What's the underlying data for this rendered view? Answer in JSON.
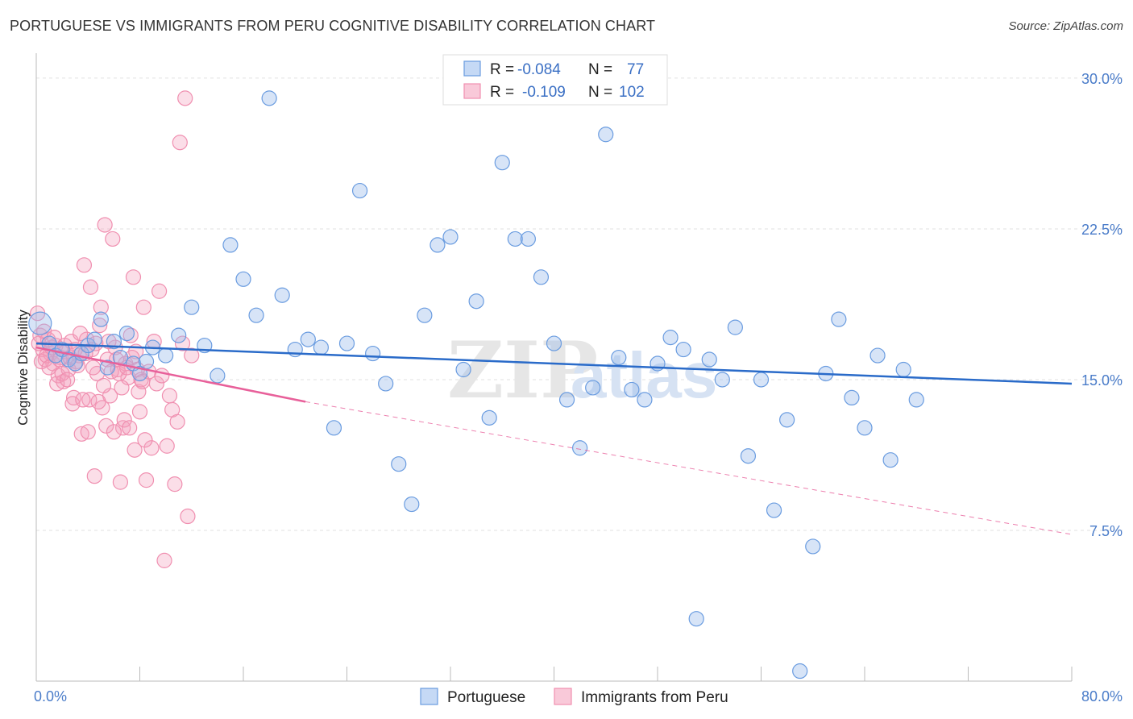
{
  "header": {
    "title": "PORTUGUESE VS IMMIGRANTS FROM PERU COGNITIVE DISABILITY CORRELATION CHART",
    "source": "Source: ZipAtlas.com"
  },
  "legend": {
    "rows": [
      {
        "r_label": "R =",
        "r_value": "-0.084",
        "n_label": "N =",
        "n_value": "77"
      },
      {
        "r_label": "R =",
        "r_value": "-0.109",
        "n_label": "N =",
        "n_value": "102"
      }
    ]
  },
  "bottom_legend": [
    "Portuguese",
    "Immigrants from Peru"
  ],
  "watermark": {
    "zip": "ZIP",
    "atlas": "atlas"
  },
  "chart_data": {
    "type": "scatter",
    "title": "PORTUGUESE VS IMMIGRANTS FROM PERU COGNITIVE DISABILITY CORRELATION CHART",
    "ylabel": "Cognitive Disability",
    "xlabel": "",
    "xlim": [
      0,
      80
    ],
    "ylim": [
      0,
      31
    ],
    "x_tick_labels": [
      "0.0%",
      "80.0%"
    ],
    "y_ticks": [
      7.5,
      15.0,
      22.5,
      30.0
    ],
    "y_tick_labels": [
      "7.5%",
      "15.0%",
      "22.5%",
      "30.0%"
    ],
    "grid": true,
    "legend_placement": "top-center",
    "colors": {
      "portuguese": "#6a9ce0",
      "peru": "#f08fb0",
      "portuguese_line": "#2a6bc9",
      "peru_line": "#e8609a"
    },
    "series": [
      {
        "name": "Portuguese",
        "R": -0.084,
        "N": 77,
        "trend": {
          "x0": 0,
          "y0": 16.8,
          "x1": 80,
          "y1": 14.8
        },
        "points": [
          [
            0.3,
            17.8
          ],
          [
            1,
            16.8
          ],
          [
            1.5,
            16.2
          ],
          [
            2,
            16.5
          ],
          [
            2.5,
            16.0
          ],
          [
            3,
            15.8
          ],
          [
            3.5,
            16.3
          ],
          [
            4,
            16.7
          ],
          [
            4.5,
            17.0
          ],
          [
            5,
            18.0
          ],
          [
            5.5,
            15.6
          ],
          [
            6,
            16.9
          ],
          [
            6.5,
            16.1
          ],
          [
            7,
            17.3
          ],
          [
            7.5,
            15.8
          ],
          [
            8,
            15.3
          ],
          [
            8.5,
            15.9
          ],
          [
            9,
            16.6
          ],
          [
            10,
            16.2
          ],
          [
            11,
            17.2
          ],
          [
            12,
            18.6
          ],
          [
            13,
            16.7
          ],
          [
            14,
            15.2
          ],
          [
            15,
            21.7
          ],
          [
            16,
            20.0
          ],
          [
            17,
            18.2
          ],
          [
            18,
            29.0
          ],
          [
            19,
            19.2
          ],
          [
            20,
            16.5
          ],
          [
            21,
            17.0
          ],
          [
            22,
            16.6
          ],
          [
            23,
            12.6
          ],
          [
            24,
            16.8
          ],
          [
            25,
            24.4
          ],
          [
            26,
            16.3
          ],
          [
            27,
            14.8
          ],
          [
            28,
            10.8
          ],
          [
            29,
            8.8
          ],
          [
            30,
            18.2
          ],
          [
            31,
            21.7
          ],
          [
            32,
            22.1
          ],
          [
            33,
            15.5
          ],
          [
            34,
            18.9
          ],
          [
            35,
            13.1
          ],
          [
            36,
            25.8
          ],
          [
            37,
            22.0
          ],
          [
            38,
            22.0
          ],
          [
            39,
            20.1
          ],
          [
            40,
            16.8
          ],
          [
            41,
            14.0
          ],
          [
            42,
            11.6
          ],
          [
            43,
            14.6
          ],
          [
            44,
            27.2
          ],
          [
            45,
            16.1
          ],
          [
            46,
            14.5
          ],
          [
            47,
            14.0
          ],
          [
            48,
            15.8
          ],
          [
            49,
            17.1
          ],
          [
            50,
            16.5
          ],
          [
            51,
            3.1
          ],
          [
            52,
            16.0
          ],
          [
            53,
            15.0
          ],
          [
            54,
            17.6
          ],
          [
            55,
            11.2
          ],
          [
            56,
            15.0
          ],
          [
            57,
            8.5
          ],
          [
            58,
            13.0
          ],
          [
            59,
            0.5
          ],
          [
            60,
            6.7
          ],
          [
            61,
            15.3
          ],
          [
            62,
            18.0
          ],
          [
            63,
            14.1
          ],
          [
            64,
            12.6
          ],
          [
            65,
            16.2
          ],
          [
            66,
            11.0
          ],
          [
            67,
            15.5
          ],
          [
            68,
            14.0
          ]
        ]
      },
      {
        "name": "Immigrants from Peru",
        "R": -0.109,
        "N": 102,
        "trend": {
          "x0": 0,
          "y0": 16.6,
          "x1": 20.8,
          "y1": 13.9,
          "dash_x1": 80,
          "dash_y1": 7.3
        },
        "points": [
          [
            0.1,
            18.3
          ],
          [
            0.3,
            17.2
          ],
          [
            0.5,
            16.5
          ],
          [
            0.7,
            16.0
          ],
          [
            0.9,
            17.0
          ],
          [
            1.1,
            16.3
          ],
          [
            1.3,
            15.8
          ],
          [
            1.5,
            16.7
          ],
          [
            1.7,
            15.2
          ],
          [
            1.9,
            16.1
          ],
          [
            2.1,
            14.9
          ],
          [
            2.3,
            16.4
          ],
          [
            2.5,
            15.5
          ],
          [
            2.7,
            16.9
          ],
          [
            2.9,
            14.1
          ],
          [
            3.1,
            15.9
          ],
          [
            3.3,
            16.2
          ],
          [
            3.5,
            12.3
          ],
          [
            3.7,
            20.7
          ],
          [
            3.9,
            17.0
          ],
          [
            4.1,
            14.0
          ],
          [
            4.3,
            16.5
          ],
          [
            4.5,
            10.2
          ],
          [
            4.7,
            15.3
          ],
          [
            4.9,
            17.7
          ],
          [
            5.1,
            13.6
          ],
          [
            5.3,
            22.7
          ],
          [
            5.5,
            16.0
          ],
          [
            5.7,
            14.2
          ],
          [
            5.9,
            22.0
          ],
          [
            6.1,
            16.6
          ],
          [
            6.3,
            15.5
          ],
          [
            6.5,
            9.9
          ],
          [
            6.7,
            12.6
          ],
          [
            6.9,
            15.8
          ],
          [
            7.1,
            15.1
          ],
          [
            7.3,
            17.2
          ],
          [
            7.5,
            20.1
          ],
          [
            7.7,
            16.4
          ],
          [
            7.9,
            14.4
          ],
          [
            8.1,
            15.0
          ],
          [
            8.3,
            18.6
          ],
          [
            8.5,
            10.0
          ],
          [
            8.7,
            15.4
          ],
          [
            8.9,
            11.6
          ],
          [
            9.1,
            16.9
          ],
          [
            9.3,
            14.8
          ],
          [
            9.5,
            19.4
          ],
          [
            9.7,
            15.2
          ],
          [
            9.9,
            6.0
          ],
          [
            10.1,
            11.7
          ],
          [
            10.3,
            14.2
          ],
          [
            10.5,
            13.5
          ],
          [
            10.7,
            9.8
          ],
          [
            10.9,
            12.9
          ],
          [
            11.1,
            26.8
          ],
          [
            11.3,
            16.8
          ],
          [
            11.5,
            29.0
          ],
          [
            11.7,
            8.2
          ],
          [
            12.0,
            16.2
          ],
          [
            0.2,
            16.8
          ],
          [
            0.4,
            15.9
          ],
          [
            0.6,
            17.4
          ],
          [
            0.8,
            16.2
          ],
          [
            1.0,
            15.6
          ],
          [
            1.2,
            16.6
          ],
          [
            1.4,
            17.1
          ],
          [
            1.6,
            14.8
          ],
          [
            1.8,
            16.0
          ],
          [
            2.0,
            15.3
          ],
          [
            2.2,
            16.7
          ],
          [
            2.4,
            15.0
          ],
          [
            2.6,
            16.1
          ],
          [
            2.8,
            13.8
          ],
          [
            3.0,
            16.5
          ],
          [
            3.2,
            15.7
          ],
          [
            3.4,
            17.3
          ],
          [
            3.6,
            14.0
          ],
          [
            3.8,
            16.3
          ],
          [
            4.0,
            12.4
          ],
          [
            4.2,
            19.6
          ],
          [
            4.4,
            15.6
          ],
          [
            4.6,
            16.8
          ],
          [
            4.8,
            13.9
          ],
          [
            5.0,
            18.6
          ],
          [
            5.2,
            14.7
          ],
          [
            5.4,
            12.7
          ],
          [
            5.6,
            16.9
          ],
          [
            5.8,
            15.4
          ],
          [
            6.0,
            12.4
          ],
          [
            6.2,
            16.0
          ],
          [
            6.4,
            15.3
          ],
          [
            6.6,
            14.6
          ],
          [
            6.8,
            13.0
          ],
          [
            7.0,
            15.6
          ],
          [
            7.2,
            12.6
          ],
          [
            7.4,
            16.1
          ],
          [
            7.6,
            11.5
          ],
          [
            7.8,
            15.5
          ],
          [
            8.0,
            13.4
          ],
          [
            8.2,
            14.9
          ],
          [
            8.4,
            12.0
          ]
        ]
      }
    ]
  }
}
